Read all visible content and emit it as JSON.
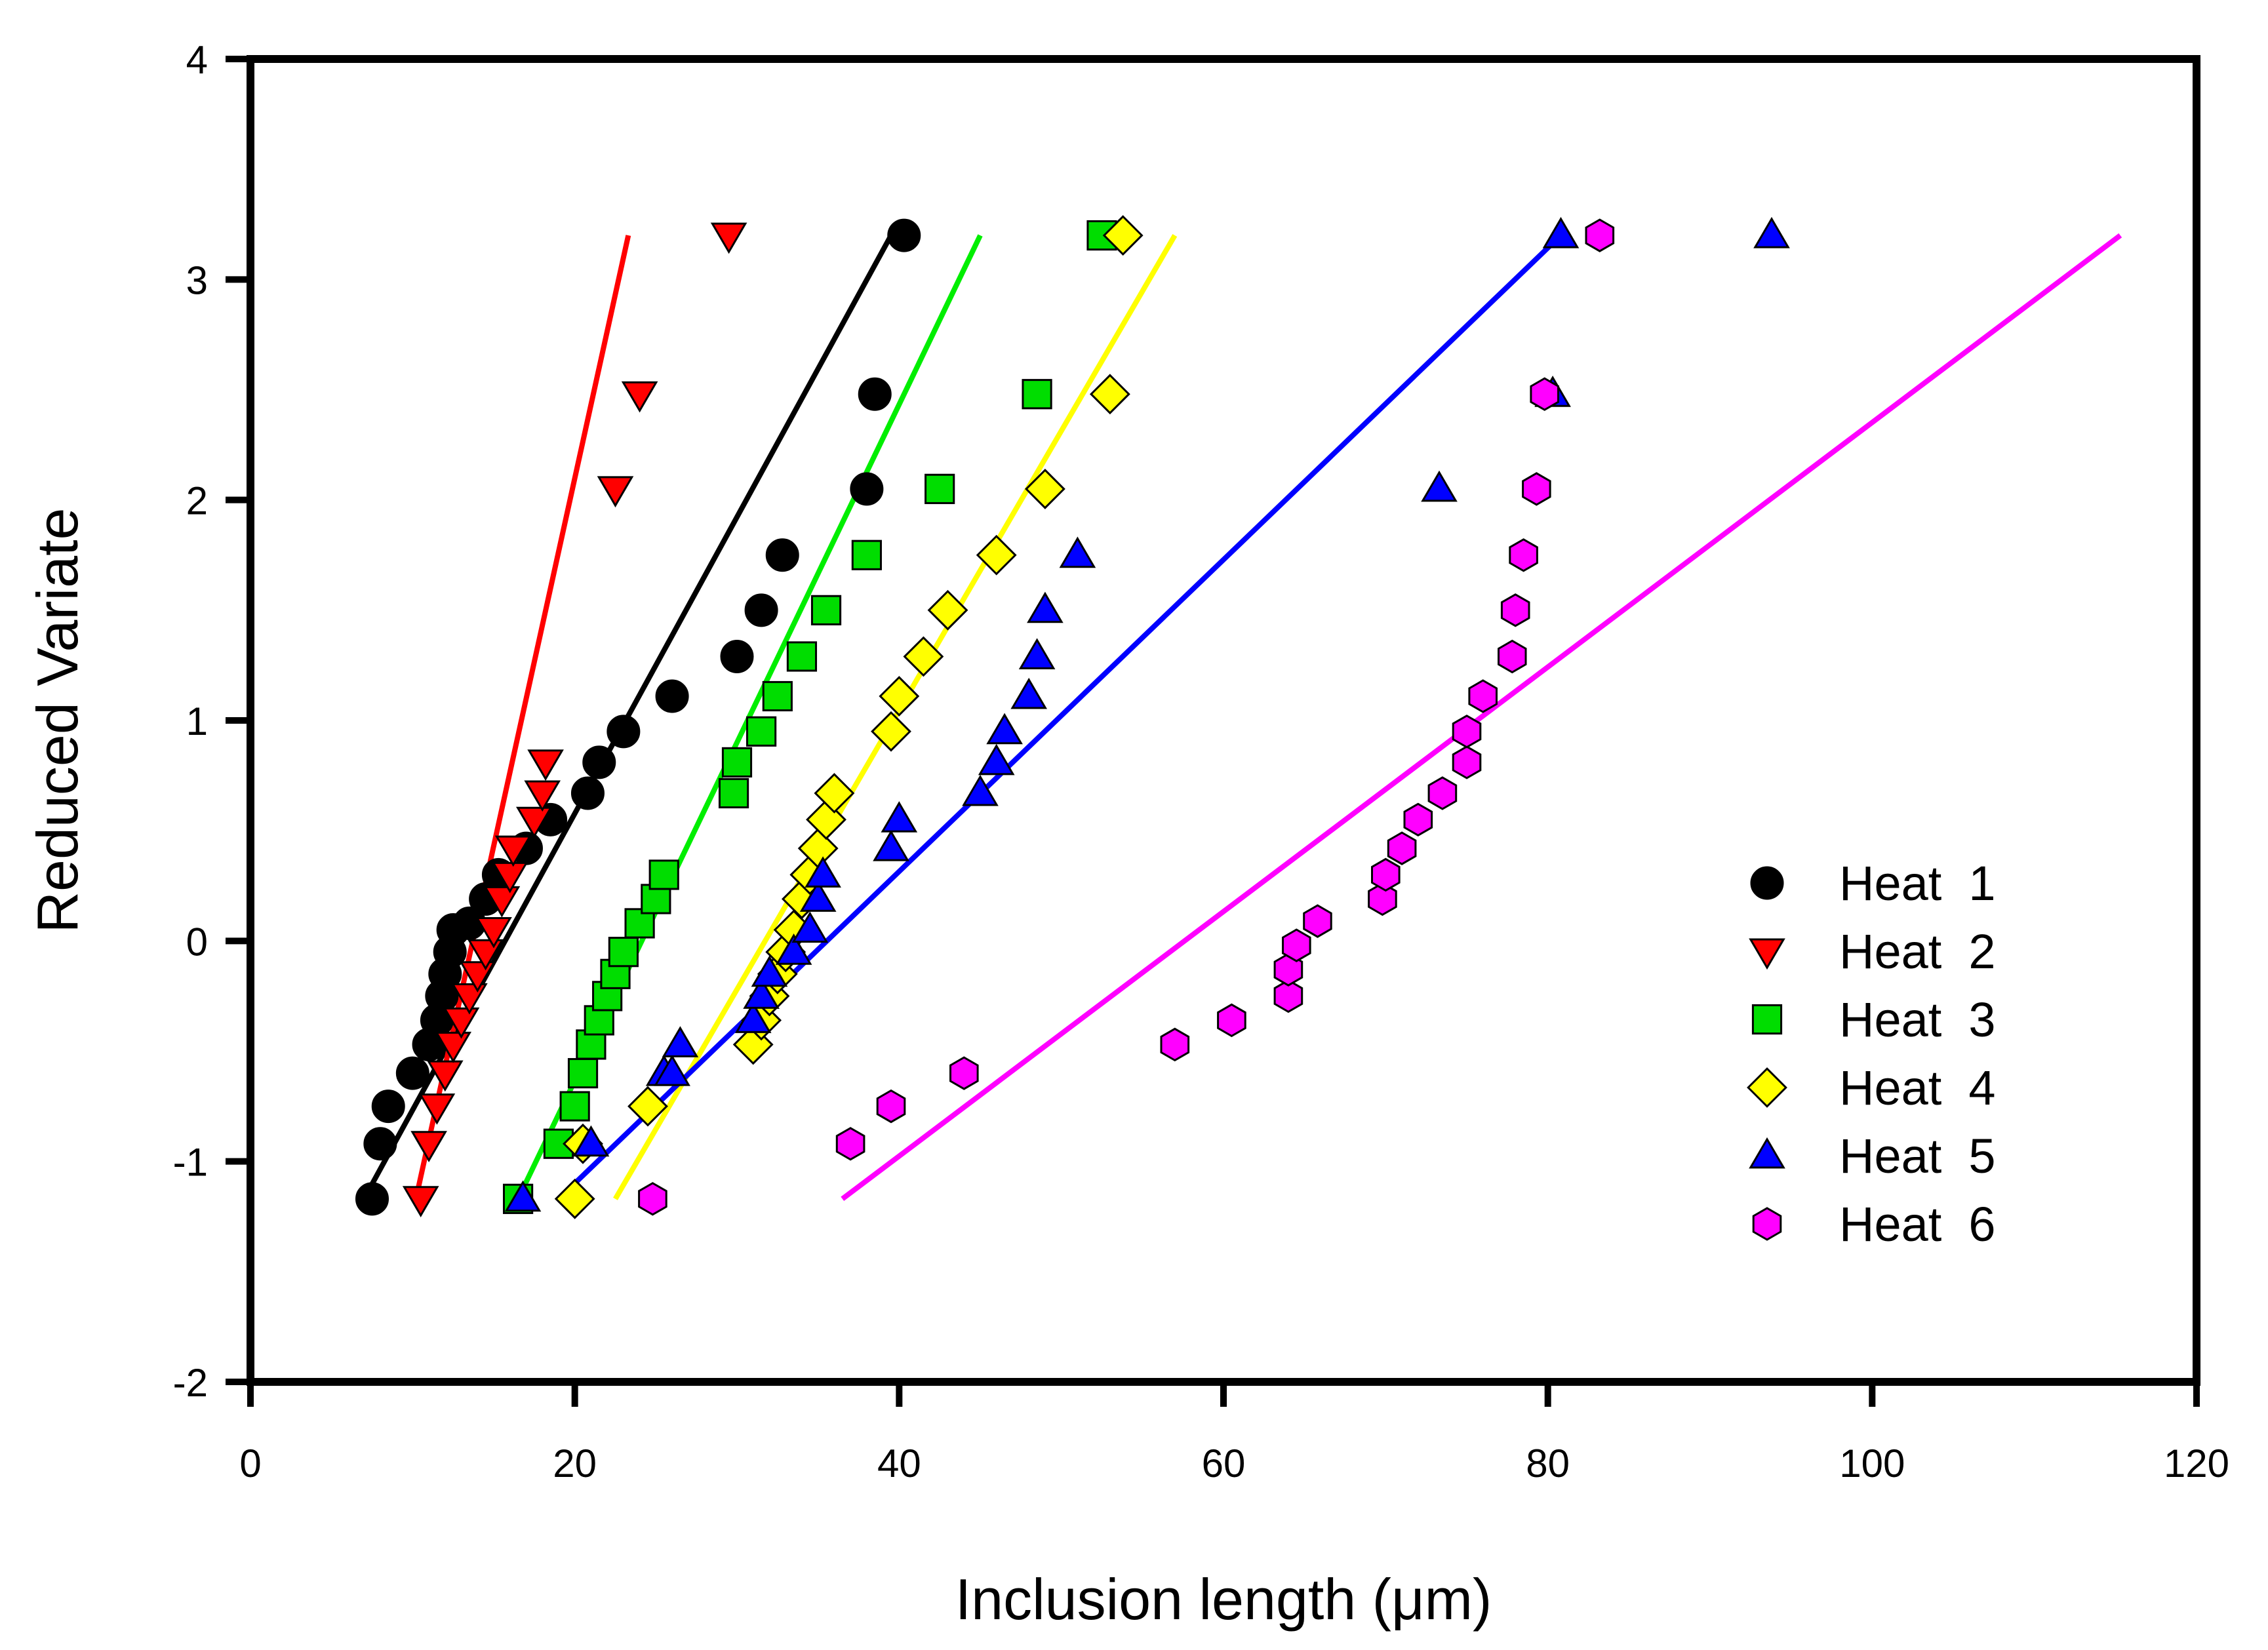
{
  "chart_data": {
    "type": "scatter",
    "title": "",
    "xlabel": "Inclusion length   (μm)",
    "ylabel": "Reduced Variate",
    "xlim": [
      0,
      120
    ],
    "ylim": [
      -2,
      4
    ],
    "xticks": [
      0,
      20,
      40,
      60,
      80,
      100,
      120
    ],
    "yticks": [
      -2,
      -1,
      0,
      1,
      2,
      3,
      4
    ],
    "xtick_labels": [
      "0",
      "20",
      "40",
      "60",
      "80",
      "100",
      "120"
    ],
    "ytick_labels": [
      "-2",
      "-1",
      "0",
      "1",
      "2",
      "3",
      "4"
    ],
    "grid": false,
    "legend_position": "right-middle",
    "series": [
      {
        "name": "Heat  1",
        "marker": "circle",
        "color": "#000000",
        "x": [
          7.5,
          8,
          8.5,
          10,
          11,
          11.5,
          11.8,
          12,
          12.3,
          12.5,
          13.5,
          14.5,
          15.3,
          17,
          18.5,
          20.8,
          21.5,
          23,
          26,
          30,
          31.5,
          32.8,
          38,
          38.5,
          40.3
        ],
        "y": [
          -1.17,
          -0.92,
          -0.75,
          -0.6,
          -0.47,
          -0.36,
          -0.25,
          -0.15,
          -0.05,
          0.05,
          0.08,
          0.19,
          0.3,
          0.42,
          0.55,
          0.67,
          0.81,
          0.95,
          1.11,
          1.29,
          1.5,
          1.75,
          2.05,
          2.48,
          3.2
        ],
        "fit": [
          [
            7,
            -1.17
          ],
          [
            39.5,
            3.2
          ]
        ],
        "fit_color": "#000000"
      },
      {
        "name": "Heat  2",
        "marker": "triangle-down",
        "color": "#ff0000",
        "x": [
          10.5,
          11,
          11.5,
          12,
          12.5,
          13,
          13.5,
          14,
          14.5,
          15,
          15.5,
          16,
          16.2,
          17.5,
          18,
          18.2,
          22.5,
          24,
          29.5
        ],
        "y": [
          -1.17,
          -0.92,
          -0.75,
          -0.6,
          -0.47,
          -0.36,
          -0.25,
          -0.15,
          -0.05,
          0.05,
          0.19,
          0.3,
          0.42,
          0.55,
          0.67,
          0.81,
          2.05,
          2.48,
          3.2
        ],
        "fit": [
          [
            10.2,
            -1.17
          ],
          [
            23.3,
            3.2
          ]
        ],
        "fit_color": "#ff0000"
      },
      {
        "name": "Heat  3",
        "marker": "square",
        "color": "#00dd00",
        "x": [
          16.5,
          19,
          20,
          20.5,
          21,
          21.5,
          22,
          22.5,
          23,
          24,
          25,
          25.5,
          29.8,
          30,
          31.5,
          32.5,
          34,
          35.5,
          38,
          42.5,
          48.5,
          52.5
        ],
        "y": [
          -1.17,
          -0.92,
          -0.75,
          -0.6,
          -0.47,
          -0.36,
          -0.25,
          -0.15,
          -0.05,
          0.08,
          0.19,
          0.3,
          0.67,
          0.81,
          0.95,
          1.11,
          1.29,
          1.5,
          1.75,
          2.05,
          2.48,
          3.2
        ],
        "fit": [
          [
            16.5,
            -1.17
          ],
          [
            45,
            3.2
          ]
        ],
        "fit_color": "#00ee00"
      },
      {
        "name": "Heat  4",
        "marker": "diamond",
        "color": "#ffff00",
        "x": [
          20,
          20.5,
          24.5,
          31,
          31.5,
          32,
          32.5,
          33,
          33.5,
          34,
          34.5,
          35,
          35.5,
          36,
          39.5,
          40,
          41.5,
          43,
          46,
          49,
          53,
          53.8
        ],
        "y": [
          -1.17,
          -0.92,
          -0.75,
          -0.47,
          -0.36,
          -0.25,
          -0.15,
          -0.05,
          0.05,
          0.19,
          0.3,
          0.42,
          0.55,
          0.67,
          0.95,
          1.11,
          1.29,
          1.5,
          1.75,
          2.05,
          2.48,
          3.2
        ],
        "fit": [
          [
            22.5,
            -1.17
          ],
          [
            57,
            3.2
          ]
        ],
        "fit_color": "#ffff00"
      },
      {
        "name": "Heat  5",
        "marker": "triangle-up",
        "color": "#0000ff",
        "x": [
          16.8,
          21,
          25.5,
          26,
          26.5,
          31,
          31.5,
          32,
          33.5,
          34.5,
          35,
          35.3,
          39.5,
          40,
          45,
          46,
          46.5,
          48,
          48.5,
          49,
          51,
          73.3,
          80.3,
          80.8,
          93.8
        ],
        "y": [
          -1.17,
          -0.92,
          -0.6,
          -0.6,
          -0.47,
          -0.36,
          -0.25,
          -0.15,
          -0.05,
          0.05,
          0.19,
          0.3,
          0.42,
          0.55,
          0.67,
          0.81,
          0.95,
          1.11,
          1.29,
          1.5,
          1.75,
          2.05,
          2.48,
          3.2,
          3.2
        ],
        "fit": [
          [
            19,
            -1.17
          ],
          [
            80.8,
            3.2
          ]
        ],
        "fit_color": "#0000ff"
      },
      {
        "name": "Heat  6",
        "marker": "hexagon",
        "color": "#ff00ff",
        "x": [
          24.8,
          37,
          39.5,
          44,
          57,
          60.5,
          64,
          64,
          64.5,
          65.8,
          69.8,
          70,
          71,
          72,
          73.5,
          75,
          75,
          76,
          77.8,
          78,
          78.5,
          79.3,
          79.8,
          83.2
        ],
        "y": [
          -1.17,
          -0.92,
          -0.75,
          -0.6,
          -0.47,
          -0.36,
          -0.25,
          -0.13,
          -0.02,
          0.09,
          0.19,
          0.3,
          0.42,
          0.55,
          0.67,
          0.81,
          0.95,
          1.11,
          1.29,
          1.5,
          1.75,
          2.05,
          2.48,
          3.2
        ],
        "fit": [
          [
            36.5,
            -1.17
          ],
          [
            115.3,
            3.2
          ]
        ],
        "fit_color": "#ff00ff"
      }
    ]
  }
}
